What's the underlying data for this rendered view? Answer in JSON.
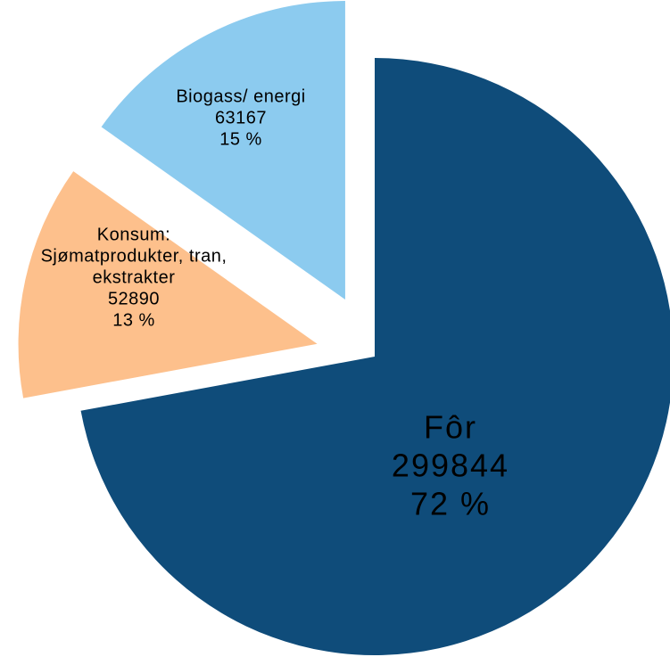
{
  "chart_data": {
    "type": "pie",
    "categories": [
      [
        "Fôr"
      ],
      [
        "Konsum:",
        "Sjømatprodukter, tran,",
        "ekstrakter"
      ],
      [
        "Biogass/ energi"
      ]
    ],
    "values": [
      299844,
      52890,
      63167
    ],
    "percents": [
      72,
      13,
      15
    ],
    "percent_labels": [
      "72 %",
      "13 %",
      "15 %"
    ],
    "colors": [
      "#0f4c7a",
      "#fdc08c",
      "#8ccbef"
    ]
  }
}
